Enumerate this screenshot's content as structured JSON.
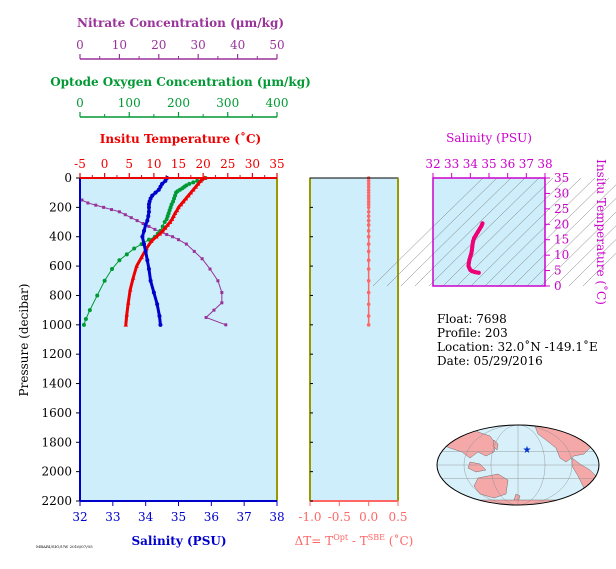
{
  "chart_data": [
    {
      "type": "line",
      "ylabel": "Pressure (decibar)",
      "ylim": [
        0,
        2200
      ],
      "y_ticks": [
        0,
        200,
        400,
        600,
        800,
        1000,
        1200,
        1400,
        1600,
        1800,
        2000,
        2200
      ],
      "grid": false,
      "axes": {
        "nitrate": {
          "label": "Nitrate Concentration (µm/kg)",
          "lim": [
            0,
            50
          ],
          "ticks": [
            0,
            10,
            20,
            30,
            40,
            50
          ],
          "color": "#993399"
        },
        "oxygen": {
          "label": "Optode Oxygen Concentration (µm/kg)",
          "lim": [
            0,
            400
          ],
          "ticks": [
            0,
            100,
            200,
            300,
            400
          ],
          "color": "#009933"
        },
        "temperature": {
          "label": "Insitu Temperature (˚C)",
          "lim": [
            -5,
            35
          ],
          "ticks": [
            -5,
            0,
            5,
            10,
            15,
            20,
            25,
            30,
            35
          ],
          "color": "#ee0000"
        },
        "salinity": {
          "label": "Salinity (PSU)",
          "lim": [
            32,
            38
          ],
          "ticks": [
            32,
            33,
            34,
            35,
            36,
            37,
            38
          ],
          "color": "#0000cc"
        }
      },
      "series": [
        {
          "axis": "nitrate",
          "marker": "square",
          "points": [
            [
              0.5,
              150
            ],
            [
              2,
              170
            ],
            [
              4,
              185
            ],
            [
              6,
              200
            ],
            [
              8,
              215
            ],
            [
              10,
              230
            ],
            [
              11.5,
              250
            ],
            [
              13,
              270
            ],
            [
              14.5,
              290
            ],
            [
              16,
              310
            ],
            [
              17.5,
              330
            ],
            [
              19,
              350
            ],
            [
              20.5,
              370
            ],
            [
              22,
              385
            ],
            [
              23.5,
              400
            ],
            [
              25,
              420
            ],
            [
              27,
              450
            ],
            [
              29,
              500
            ],
            [
              31,
              550
            ],
            [
              33,
              620
            ],
            [
              35,
              700
            ],
            [
              36,
              780
            ],
            [
              36,
              850
            ],
            [
              34,
              900
            ],
            [
              32,
              950
            ],
            [
              37,
              1000
            ]
          ]
        },
        {
          "axis": "oxygen",
          "marker": "circle",
          "points": [
            [
              255,
              0
            ],
            [
              248,
              10
            ],
            [
              238,
              20
            ],
            [
              230,
              30
            ],
            [
              222,
              40
            ],
            [
              216,
              50
            ],
            [
              212,
              60
            ],
            [
              208,
              70
            ],
            [
              203,
              80
            ],
            [
              198,
              90
            ],
            [
              195,
              100
            ],
            [
              193,
              120
            ],
            [
              191,
              140
            ],
            [
              189,
              160
            ],
            [
              186,
              180
            ],
            [
              184,
              200
            ],
            [
              182,
              220
            ],
            [
              180,
              240
            ],
            [
              178,
              260
            ],
            [
              176,
              280
            ],
            [
              172,
              300
            ],
            [
              168,
              330
            ],
            [
              163,
              360
            ],
            [
              158,
              380
            ],
            [
              152,
              400
            ],
            [
              140,
              420
            ],
            [
              125,
              450
            ],
            [
              110,
              480
            ],
            [
              95,
              520
            ],
            [
              80,
              560
            ],
            [
              65,
              620
            ],
            [
              50,
              700
            ],
            [
              35,
              800
            ],
            [
              20,
              900
            ],
            [
              12,
              960
            ],
            [
              8,
              1000
            ]
          ]
        },
        {
          "axis": "temperature",
          "marker": "triangle",
          "points": [
            [
              20.3,
              0
            ],
            [
              19.5,
              20
            ],
            [
              19,
              40
            ],
            [
              18.5,
              60
            ],
            [
              18,
              80
            ],
            [
              17.5,
              100
            ],
            [
              17,
              120
            ],
            [
              16.5,
              140
            ],
            [
              16,
              160
            ],
            [
              15.5,
              180
            ],
            [
              15,
              200
            ],
            [
              14.7,
              220
            ],
            [
              14.3,
              240
            ],
            [
              14,
              260
            ],
            [
              13.7,
              280
            ],
            [
              13.3,
              300
            ],
            [
              12.8,
              320
            ],
            [
              12.3,
              340
            ],
            [
              11.8,
              360
            ],
            [
              11.2,
              380
            ],
            [
              10.5,
              400
            ],
            [
              9.5,
              430
            ],
            [
              8.5,
              480
            ],
            [
              7.5,
              540
            ],
            [
              6.5,
              600
            ],
            [
              5.8,
              680
            ],
            [
              5.2,
              760
            ],
            [
              4.8,
              850
            ],
            [
              4.5,
              930
            ],
            [
              4.3,
              1000
            ]
          ]
        },
        {
          "axis": "salinity",
          "marker": "circle",
          "points": [
            [
              34.65,
              0
            ],
            [
              34.6,
              20
            ],
            [
              34.5,
              40
            ],
            [
              34.45,
              60
            ],
            [
              34.4,
              80
            ],
            [
              34.3,
              100
            ],
            [
              34.2,
              120
            ],
            [
              34.15,
              140
            ],
            [
              34.12,
              160
            ],
            [
              34.1,
              180
            ],
            [
              34.1,
              200
            ],
            [
              34.1,
              230
            ],
            [
              34.08,
              260
            ],
            [
              34.05,
              290
            ],
            [
              34.0,
              320
            ],
            [
              33.95,
              360
            ],
            [
              33.9,
              400
            ],
            [
              33.95,
              450
            ],
            [
              34.0,
              500
            ],
            [
              34.05,
              560
            ],
            [
              34.1,
              620
            ],
            [
              34.15,
              700
            ],
            [
              34.25,
              780
            ],
            [
              34.35,
              860
            ],
            [
              34.42,
              940
            ],
            [
              34.45,
              1000
            ]
          ]
        }
      ]
    },
    {
      "type": "scatter",
      "xlabel": "ΔT= T",
      "xlabel_sup1": "Opt",
      "xlabel_mid": " - T",
      "xlabel_sup2": "SBE",
      "xlabel_end": " (˚C)",
      "xlim": [
        -1.0,
        0.5
      ],
      "x_ticks": [
        "-1.0",
        "-0.5",
        "0.0",
        "0.5"
      ],
      "ylim": [
        0,
        2200
      ],
      "color": "#ff6666",
      "points": [
        [
          0.0,
          0
        ],
        [
          0.0,
          20
        ],
        [
          0.0,
          40
        ],
        [
          0.0,
          60
        ],
        [
          0.0,
          80
        ],
        [
          0.0,
          100
        ],
        [
          0.0,
          120
        ],
        [
          0.0,
          140
        ],
        [
          0.0,
          160
        ],
        [
          0.0,
          180
        ],
        [
          0.0,
          200
        ],
        [
          0.0,
          230
        ],
        [
          0.0,
          260
        ],
        [
          0.0,
          290
        ],
        [
          0.0,
          320
        ],
        [
          0.0,
          360
        ],
        [
          0.0,
          400
        ],
        [
          0.0,
          450
        ],
        [
          0.0,
          500
        ],
        [
          0.0,
          560
        ],
        [
          0.0,
          620
        ],
        [
          0.0,
          700
        ],
        [
          0.0,
          780
        ],
        [
          0.0,
          860
        ],
        [
          0.0,
          940
        ],
        [
          0.0,
          1000
        ]
      ]
    },
    {
      "type": "line",
      "title": "Salinity (PSU)",
      "ylabel": "Insitu Temperature (˚C)",
      "xlim": [
        32,
        38
      ],
      "x_ticks": [
        32,
        33,
        34,
        35,
        36,
        37,
        38
      ],
      "ylim": [
        0,
        35
      ],
      "y_ticks": [
        0,
        5,
        10,
        15,
        20,
        25,
        30,
        35
      ],
      "color": "#cc00cc",
      "line_color": "#ee0077",
      "points": [
        [
          34.65,
          20.3
        ],
        [
          34.6,
          19.5
        ],
        [
          34.5,
          18.5
        ],
        [
          34.4,
          17.5
        ],
        [
          34.3,
          16.5
        ],
        [
          34.2,
          15.5
        ],
        [
          34.15,
          14.5
        ],
        [
          34.12,
          13.5
        ],
        [
          34.1,
          12.5
        ],
        [
          34.08,
          11.5
        ],
        [
          34.05,
          10.5
        ],
        [
          34.0,
          9.5
        ],
        [
          33.95,
          8.5
        ],
        [
          33.92,
          7.5
        ],
        [
          33.9,
          6.5
        ],
        [
          33.95,
          5.8
        ],
        [
          34.0,
          5.2
        ],
        [
          34.1,
          4.8
        ],
        [
          34.25,
          4.5
        ],
        [
          34.45,
          4.3
        ]
      ]
    }
  ],
  "info": {
    "float": "Float:  7698",
    "profile": "Profile:  203",
    "location": "Location:  32.0˚N  -149.1˚E",
    "date": "Date:  05/29/2016"
  },
  "map": {
    "land_color": "#f4a8a8",
    "ocean_color": "#d8f0fa",
    "marker_color": "#0033cc"
  },
  "footer": "MBARI/SIO/UW 2016/07/05",
  "colors": {
    "plot_bg": "#cdeefa",
    "axis_left": "#0000cc",
    "axis_right": "#999900"
  }
}
